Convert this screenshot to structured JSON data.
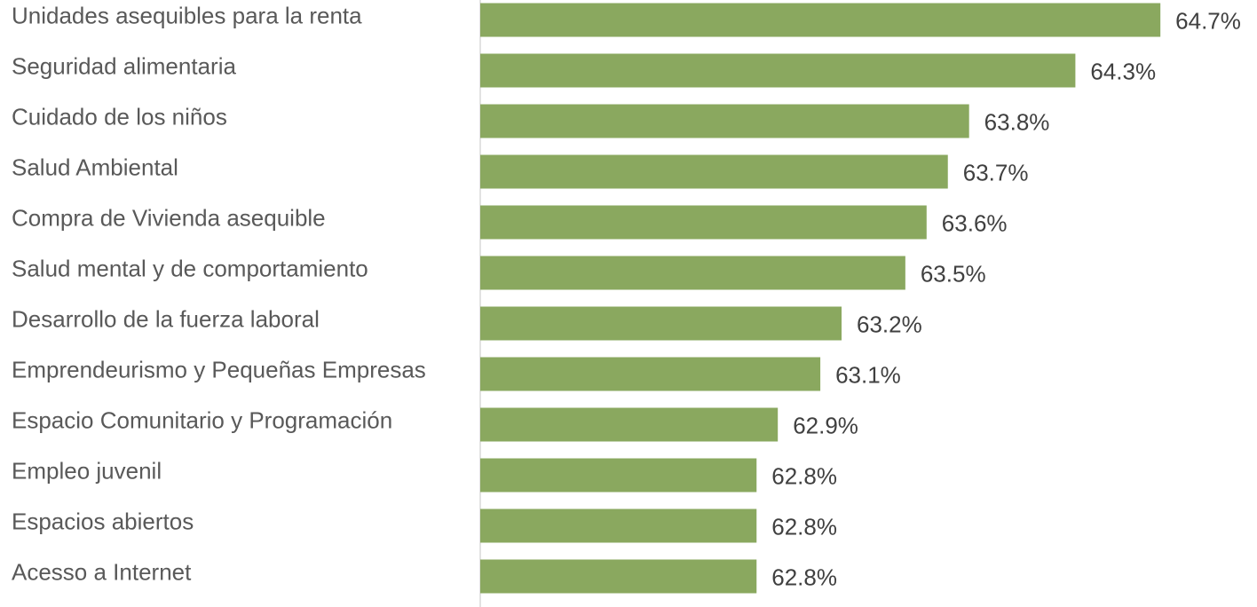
{
  "chart_data": {
    "type": "bar",
    "orientation": "horizontal",
    "categories": [
      "Unidades asequibles para la renta",
      "Seguridad alimentaria",
      "Cuidado de los niños",
      "Salud Ambiental",
      "Compra de Vivienda asequible",
      "Salud mental y de comportamiento",
      "Desarrollo de la fuerza laboral",
      "Emprendeurismo y Pequeñas Empresas",
      "Espacio Comunitario y Programación",
      "Empleo juvenil",
      "Espacios abiertos",
      "Acesso a Internet"
    ],
    "values": [
      64.7,
      64.3,
      63.8,
      63.7,
      63.6,
      63.5,
      63.2,
      63.1,
      62.9,
      62.8,
      62.8,
      62.8
    ],
    "value_labels": [
      "64.7%",
      "64.3%",
      "63.8%",
      "63.7%",
      "63.6%",
      "63.5%",
      "63.2%",
      "63.1%",
      "62.9%",
      "62.8%",
      "62.8%",
      "62.8%"
    ],
    "color": "#8aa85f",
    "xlim": [
      61.5,
      65.0
    ]
  }
}
